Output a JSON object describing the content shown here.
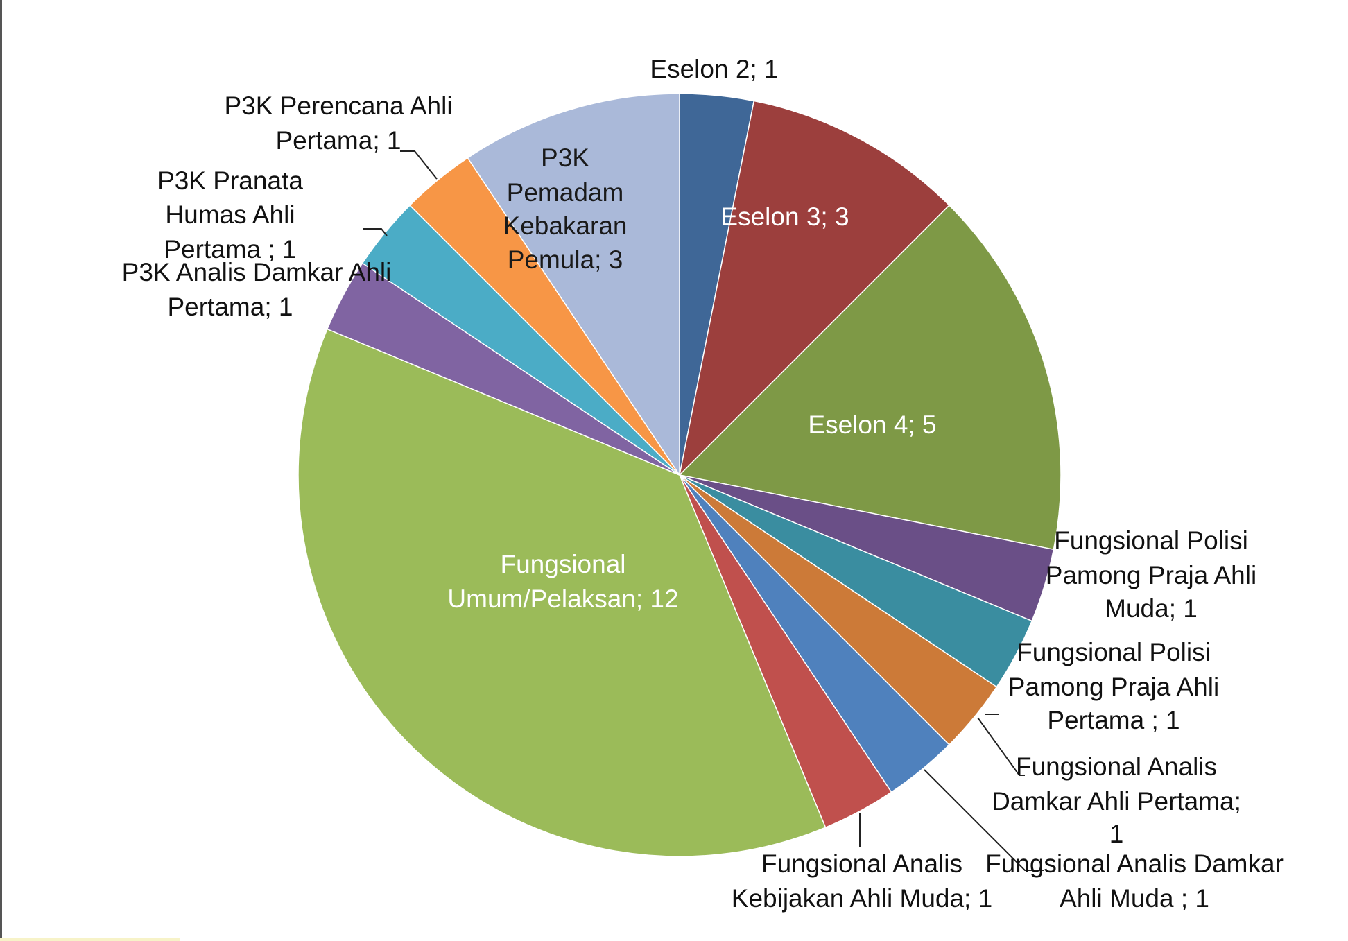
{
  "chart_data": {
    "type": "pie",
    "title": "",
    "slices": [
      {
        "label": "Eselon 2; 1",
        "value": 1,
        "color": "#3f6797"
      },
      {
        "label": "Eselon 3; 3",
        "value": 3,
        "color": "#9c3f3d"
      },
      {
        "label": "Eselon 4; 5",
        "value": 5,
        "color": "#7e9946"
      },
      {
        "label": "Fungsional Polisi Pamong Praja Ahli Muda; 1",
        "value": 1,
        "color": "#6a4f87"
      },
      {
        "label": "Fungsional Polisi Pamong Praja Ahli Pertama ; 1",
        "value": 1,
        "color": "#3a8da0"
      },
      {
        "label": "Fungsional Analis Damkar Ahli Pertama; 1",
        "value": 1,
        "color": "#cc7a38"
      },
      {
        "label": "Fungsional Analis Damkar Ahli Muda ; 1",
        "value": 1,
        "color": "#4f81bd"
      },
      {
        "label": "Fungsional Analis Kebijakan Ahli Muda; 1",
        "value": 1,
        "color": "#c0504d"
      },
      {
        "label": "Fungsional Umum/Pelaksan; 12",
        "value": 12,
        "color": "#9bbb59"
      },
      {
        "label": "P3K Analis Damkar Ahli Pertama; 1",
        "value": 1,
        "color": "#8064a2"
      },
      {
        "label": "P3K Pranata Humas Ahli Pertama ; 1",
        "value": 1,
        "color": "#4bacc6"
      },
      {
        "label": "P3K Perencana Ahli Pertama; 1",
        "value": 1,
        "color": "#f79646"
      },
      {
        "label": "P3K Pemadam Kebakaran Pemula; 3",
        "value": 3,
        "color": "#aab9d9"
      }
    ],
    "legend": "none",
    "data_labels": "category; value"
  }
}
